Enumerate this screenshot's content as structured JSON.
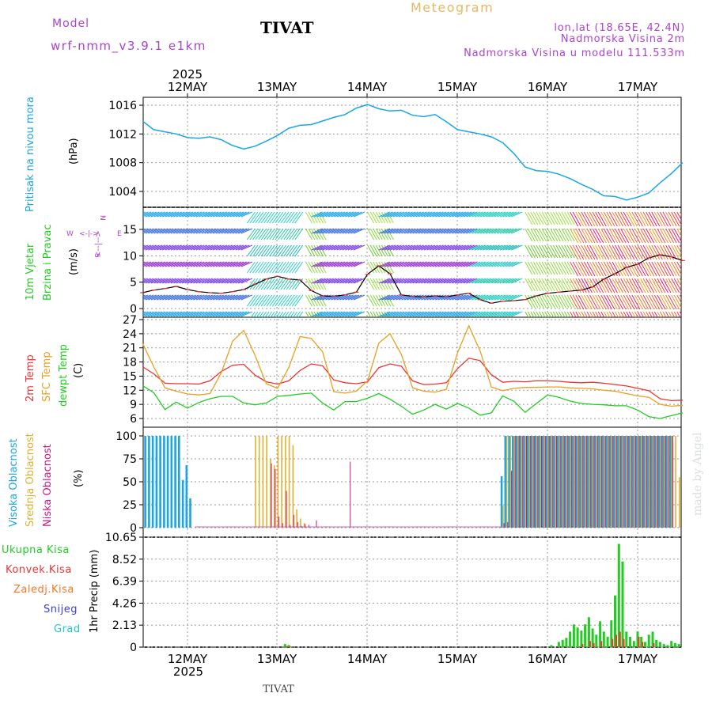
{
  "header": {
    "model_label": "Model",
    "model_name": "wrf-nmm_v3.9.1 e1km",
    "station": "TIVAT",
    "meteogram_label": "Meteogram",
    "lonlat": "lon,lat (18.65E, 42.4N)",
    "altitude": "Nadmorska Visina 2m",
    "model_altitude": "Nadmorska Visina u modelu 111.533m",
    "footer_station": "TIVAT",
    "credit": "made by Angel"
  },
  "axis_top": {
    "year": "2025",
    "days": [
      "12MAY",
      "13MAY",
      "14MAY",
      "15MAY",
      "16MAY",
      "17MAY"
    ]
  },
  "axis_bottom": {
    "year": "2025",
    "days": [
      "12MAY",
      "13MAY",
      "14MAY",
      "15MAY",
      "16MAY",
      "17MAY"
    ]
  },
  "colors": {
    "pressure": "#1aa6e6",
    "wind_label": "#22cc22",
    "compass": "#aa44cc",
    "temp2m": "#ee3333",
    "sfc": "#e8a020",
    "dewpt": "#22cc22",
    "high_cloud": "#1aa6e6",
    "mid_cloud": "#e0b030",
    "low_cloud": "#cc1a80",
    "total_precip": "#22cc22",
    "conv_precip": "#ee3333",
    "frozen": "#f07828",
    "snow": "#3b3bd8",
    "hail": "#20c8c8"
  },
  "panel_labels": {
    "pressure": {
      "name": "Pritisak na nivou mora",
      "unit": "(hPa)"
    },
    "wind": {
      "name1": "10m Vjetar",
      "name2": "Brzina i Pravac",
      "unit": "(m/s)",
      "compass_n": "N",
      "compass_s": "S",
      "compass_w": "W",
      "compass_e": "E",
      "compass_arrows": "<--|-->"
    },
    "temp": {
      "t2m": "2m Temp",
      "sfc": "SFC Temp",
      "dewpt": "dewpt Temp",
      "unit": "(C)"
    },
    "cloud": {
      "high": "Visoka Oblacnost",
      "mid": "Srednja Oblacnost",
      "low": "Niska Oblacnost",
      "unit": "(%)"
    },
    "precip": {
      "total": "Ukupna Kisa",
      "conv": "Konvek.Kisa",
      "frozen": "Zaledj.Kisa",
      "snow": "Snijeg",
      "hail": "Grad",
      "unit": "1hr Precip (mm)"
    }
  },
  "chart_data": [
    {
      "type": "line",
      "panel": "pressure",
      "ylabel": "(hPa)",
      "ylim": [
        1001,
        1017.5
      ],
      "yticks": [
        "1004",
        "1008",
        "1012",
        "1016"
      ],
      "x_hours": [
        0,
        3,
        6,
        9,
        12,
        15,
        18,
        21,
        24,
        27,
        30,
        33,
        36,
        39,
        42,
        45,
        48,
        51,
        54,
        57,
        60,
        63,
        66,
        69,
        72,
        75,
        78,
        81,
        84,
        87,
        90,
        93,
        96,
        99,
        102,
        105,
        108,
        111,
        114,
        117,
        120,
        123,
        126,
        129,
        132,
        135,
        138,
        141,
        144
      ],
      "series": [
        {
          "values": [
            1013.8,
            1012.6,
            1012.3,
            1012.0,
            1011.5,
            1011.4,
            1011.6,
            1011.2,
            1010.4,
            1009.9,
            1010.3,
            1011.0,
            1011.8,
            1012.8,
            1013.2,
            1013.3,
            1013.8,
            1014.3,
            1014.7,
            1015.6,
            1016.1,
            1015.5,
            1015.2,
            1015.3,
            1014.6,
            1014.4,
            1014.7,
            1013.7,
            1012.6,
            1012.3,
            1012.0,
            1011.6,
            1010.8,
            1009.3,
            1007.4,
            1006.9,
            1006.8,
            1006.4,
            1005.8,
            1005.0,
            1004.3,
            1003.4,
            1003.3,
            1002.8,
            1003.2,
            1003.8,
            1005.2,
            1006.5,
            1008.0
          ]
        }
      ]
    },
    {
      "type": "line",
      "panel": "wind",
      "ylabel": "(m/s)",
      "ylim": [
        -1,
        15.5
      ],
      "yticks": [
        "0",
        "5",
        "10",
        "15"
      ],
      "x_hours": [
        0,
        3,
        6,
        9,
        12,
        15,
        18,
        21,
        24,
        27,
        30,
        33,
        36,
        39,
        42,
        45,
        48,
        51,
        54,
        57,
        60,
        63,
        66,
        69,
        72,
        75,
        78,
        81,
        84,
        87,
        90,
        93,
        96,
        99,
        102,
        105,
        108,
        111,
        114,
        117,
        120,
        123,
        126,
        129,
        132,
        135,
        138,
        141,
        144
      ],
      "series": [
        {
          "name": "10m Vjetar",
          "values": [
            3.0,
            3.5,
            3.8,
            4.2,
            3.6,
            3.2,
            3.0,
            2.9,
            3.2,
            3.6,
            4.6,
            5.6,
            6.1,
            5.6,
            5.4,
            3.4,
            2.4,
            2.3,
            2.6,
            3.1,
            6.5,
            8.1,
            6.6,
            2.6,
            2.3,
            2.2,
            2.4,
            2.2,
            2.6,
            2.9,
            1.7,
            1.0,
            1.4,
            1.5,
            1.7,
            2.4,
            2.9,
            3.1,
            3.3,
            3.5,
            4.1,
            5.6,
            6.6,
            7.8,
            8.4,
            9.6,
            10.2,
            9.8,
            9.1
          ]
        }
      ]
    },
    {
      "type": "line",
      "panel": "temperature",
      "ylabel": "(C)",
      "ylim": [
        4.5,
        27
      ],
      "yticks": [
        "6",
        "9",
        "12",
        "15",
        "18",
        "21",
        "24",
        "27"
      ],
      "x_hours": [
        0,
        3,
        6,
        9,
        12,
        15,
        18,
        21,
        24,
        27,
        30,
        33,
        36,
        39,
        42,
        45,
        48,
        51,
        54,
        57,
        60,
        63,
        66,
        69,
        72,
        75,
        78,
        81,
        84,
        87,
        90,
        93,
        96,
        99,
        102,
        105,
        108,
        111,
        114,
        117,
        120,
        123,
        126,
        129,
        132,
        135,
        138,
        141,
        144
      ],
      "series": [
        {
          "name": "2m Temp",
          "values": [
            17.0,
            15.5,
            13.5,
            13.4,
            13.4,
            13.3,
            14.0,
            16.0,
            17.3,
            17.5,
            15.2,
            13.8,
            13.3,
            14.0,
            16.2,
            17.6,
            17.2,
            14.2,
            13.6,
            13.4,
            13.8,
            16.8,
            17.6,
            17.1,
            14.0,
            13.2,
            13.3,
            13.6,
            16.6,
            18.8,
            18.3,
            15.3,
            13.7,
            13.9,
            13.8,
            14.0,
            14.0,
            13.9,
            13.7,
            13.6,
            13.7,
            13.5,
            13.2,
            12.9,
            12.4,
            11.9,
            10.2,
            9.8,
            9.9
          ]
        },
        {
          "name": "SFC Temp",
          "values": [
            22.0,
            17.0,
            12.5,
            11.8,
            11.2,
            11.0,
            11.3,
            15.7,
            22.4,
            24.7,
            19.4,
            13.4,
            12.4,
            16.8,
            23.4,
            23.0,
            20.2,
            11.7,
            11.4,
            11.8,
            14.0,
            22.0,
            24.0,
            19.6,
            12.5,
            11.8,
            11.6,
            12.2,
            20.0,
            25.7,
            20.4,
            12.7,
            11.9,
            12.4,
            12.6,
            12.6,
            12.7,
            12.7,
            12.5,
            12.4,
            12.3,
            12.0,
            11.8,
            11.3,
            10.8,
            10.5,
            9.0,
            8.6,
            8.8
          ]
        },
        {
          "name": "dewpt Temp",
          "values": [
            13.0,
            11.5,
            7.9,
            9.5,
            8.2,
            9.4,
            10.2,
            10.7,
            10.7,
            9.3,
            8.9,
            9.3,
            10.7,
            10.9,
            11.2,
            11.4,
            9.3,
            7.8,
            9.6,
            9.6,
            10.3,
            11.3,
            10.1,
            8.6,
            6.9,
            7.8,
            9.0,
            8.0,
            9.2,
            8.2,
            6.7,
            7.2,
            10.8,
            9.7,
            7.3,
            9.2,
            11.0,
            10.5,
            9.7,
            9.2,
            9.0,
            8.9,
            8.7,
            8.7,
            7.8,
            6.4,
            6.0,
            6.6,
            7.2
          ]
        }
      ]
    },
    {
      "type": "bar",
      "panel": "cloud",
      "ylabel": "(%)",
      "ylim": [
        0,
        100
      ],
      "yticks": [
        "0",
        "25",
        "50",
        "75",
        "100"
      ],
      "series": [
        {
          "name": "Visoka Oblacnost",
          "x_hours": [
            1,
            2,
            3,
            4,
            5,
            6,
            7,
            8,
            9,
            10,
            11,
            12,
            13,
            96,
            97,
            98,
            99,
            100,
            101,
            102,
            103,
            104,
            105,
            106,
            107,
            108,
            109,
            110,
            111,
            112,
            113,
            114,
            115,
            116,
            117,
            118,
            119,
            120,
            121,
            122,
            123,
            124,
            125,
            126,
            127,
            128,
            129,
            130,
            131,
            132,
            133,
            134,
            135,
            136,
            137,
            138,
            139,
            140,
            141
          ],
          "values": [
            100,
            100,
            100,
            100,
            100,
            100,
            100,
            100,
            100,
            100,
            52,
            68,
            32,
            56,
            100,
            100,
            100,
            100,
            100,
            100,
            100,
            100,
            100,
            100,
            100,
            100,
            100,
            100,
            100,
            100,
            100,
            100,
            100,
            100,
            100,
            100,
            100,
            100,
            100,
            100,
            100,
            100,
            100,
            100,
            100,
            100,
            100,
            100,
            100,
            100,
            100,
            100,
            100,
            100,
            100,
            100,
            100,
            100,
            100
          ]
        },
        {
          "name": "Srednja Oblacnost",
          "x_hours": [
            30,
            31,
            32,
            33,
            34,
            35,
            36,
            37,
            38,
            39,
            40,
            41,
            42,
            43,
            96,
            97,
            98,
            99,
            100,
            101,
            102,
            103,
            104,
            105,
            106,
            107,
            108,
            109,
            110,
            111,
            112,
            113,
            114,
            115,
            116,
            117,
            118,
            119,
            120,
            121,
            122,
            123,
            124,
            125,
            126,
            127,
            128,
            129,
            130,
            131,
            132,
            133,
            134,
            135,
            136,
            137,
            138,
            139,
            140,
            141,
            142,
            143
          ],
          "values": [
            100,
            100,
            100,
            100,
            75,
            68,
            100,
            100,
            100,
            100,
            90,
            20,
            10,
            5,
            24,
            100,
            100,
            100,
            100,
            100,
            100,
            100,
            100,
            100,
            100,
            100,
            100,
            100,
            100,
            100,
            100,
            100,
            100,
            100,
            100,
            100,
            100,
            100,
            100,
            100,
            100,
            100,
            100,
            100,
            100,
            100,
            100,
            100,
            100,
            100,
            100,
            100,
            100,
            100,
            100,
            100,
            100,
            100,
            100,
            100,
            100,
            55
          ]
        },
        {
          "name": "Niska Oblacnost",
          "x_hours": [
            34,
            35,
            36,
            37,
            38,
            39,
            40,
            41,
            42,
            43,
            44,
            46,
            55,
            76,
            77,
            78,
            79,
            80,
            81,
            82,
            83,
            84,
            85,
            86,
            87,
            88,
            89,
            90,
            91,
            92,
            93,
            94,
            95,
            96,
            97,
            98,
            99,
            100,
            101,
            102,
            103,
            104,
            105,
            106,
            107,
            108,
            109,
            110,
            111,
            112,
            113,
            114,
            115,
            116,
            117,
            118,
            119,
            120,
            121,
            122,
            123,
            124,
            125,
            126,
            127,
            128,
            129,
            130,
            131,
            132,
            133,
            134,
            135,
            136,
            137,
            138,
            139,
            140,
            141
          ],
          "values": [
            70,
            64,
            12,
            5,
            40,
            3,
            14,
            6,
            2,
            4,
            3,
            8,
            72,
            0,
            0,
            0,
            0,
            0,
            0,
            0,
            0,
            0,
            0,
            0,
            0,
            0,
            0,
            0,
            0,
            0,
            0,
            0,
            0,
            5,
            6,
            62,
            100,
            100,
            100,
            100,
            100,
            100,
            100,
            100,
            100,
            100,
            100,
            100,
            100,
            100,
            100,
            100,
            100,
            100,
            100,
            100,
            100,
            100,
            100,
            100,
            100,
            100,
            100,
            100,
            100,
            100,
            100,
            100,
            100,
            100,
            100,
            100,
            100,
            100,
            100,
            100,
            100,
            100,
            100
          ]
        }
      ]
    },
    {
      "type": "bar",
      "panel": "precip",
      "ylabel": "1hr Precip (mm)",
      "ylim": [
        0,
        10.65
      ],
      "yticks": [
        "0",
        "2.13",
        "4.26",
        "6.39",
        "8.52",
        "10.65"
      ],
      "series": [
        {
          "name": "Ukupna Kisa",
          "x_hours": [
            38,
            39,
            109,
            111,
            112,
            113,
            114,
            115,
            116,
            117,
            118,
            119,
            120,
            121,
            122,
            123,
            124,
            125,
            126,
            127,
            128,
            129,
            130,
            131,
            132,
            133,
            134,
            135,
            136,
            137,
            138,
            139,
            140,
            141,
            142,
            143
          ],
          "values": [
            0.3,
            0.2,
            0.2,
            0.5,
            0.7,
            0.9,
            1.5,
            2.2,
            1.9,
            1.6,
            2.2,
            2.9,
            1.8,
            1.2,
            2.5,
            1.5,
            1.0,
            2.6,
            5.0,
            10.0,
            8.3,
            1.5,
            1.0,
            0.6,
            1.5,
            1.0,
            0.5,
            1.2,
            1.5,
            0.7,
            0.5,
            0.3,
            0.2,
            0.6,
            0.4,
            0.3
          ]
        },
        {
          "name": "Konvek.Kisa",
          "x_hours": [
            38,
            39,
            117,
            119,
            120,
            122,
            125,
            126,
            127,
            128,
            132,
            133,
            136
          ],
          "values": [
            0.1,
            0.1,
            0.3,
            0.6,
            0.4,
            0.6,
            0.8,
            1.2,
            1.5,
            0.8,
            1.0,
            0.5,
            0.4
          ]
        },
        {
          "name": "Zaledj.Kisa",
          "x_hours": [],
          "values": []
        },
        {
          "name": "Snijeg",
          "x_hours": [],
          "values": []
        },
        {
          "name": "Grad",
          "x_hours": [],
          "values": []
        }
      ]
    },
    {
      "type": "scatter",
      "panel": "wind-barbs",
      "description_note": "",
      "x_hours_range": [
        0,
        144
      ]
    }
  ]
}
